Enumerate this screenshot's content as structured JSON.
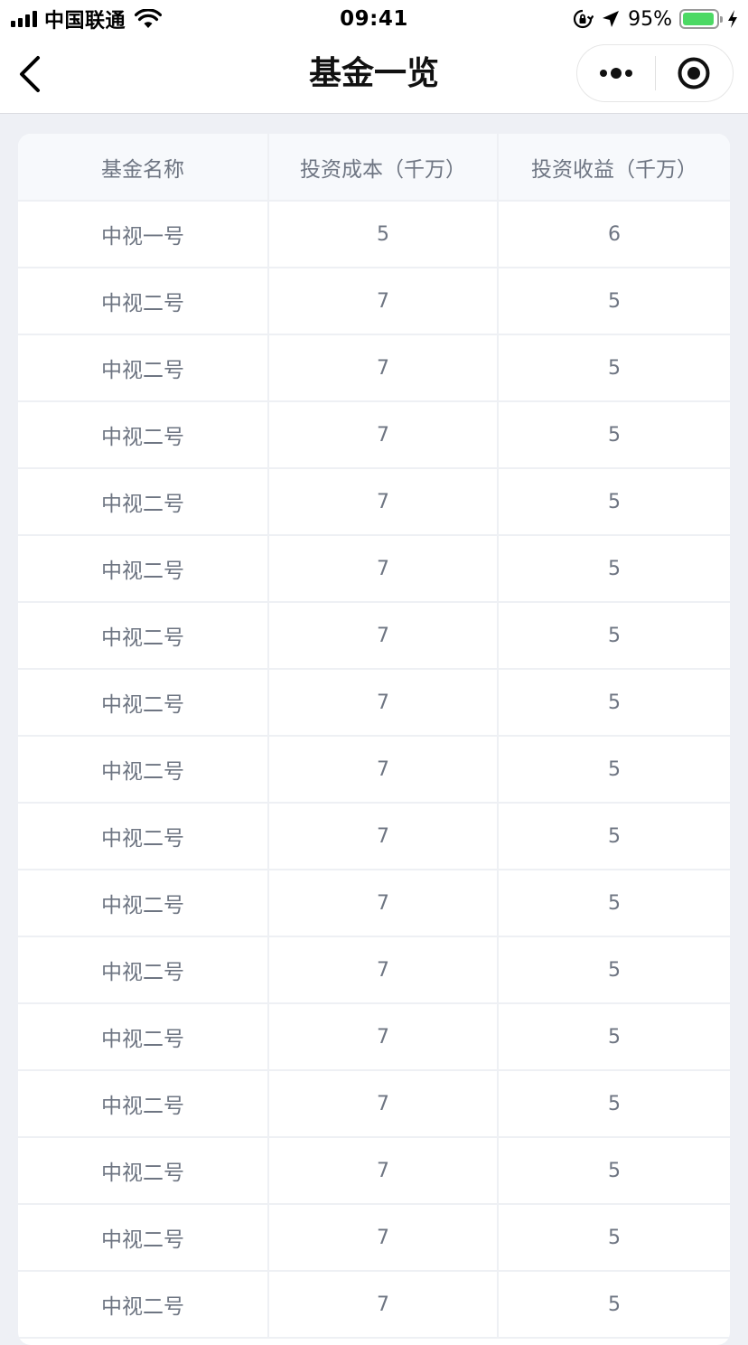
{
  "status_bar": {
    "carrier": "中国联通",
    "time": "09:41",
    "battery_percent": "95%",
    "battery_level": 0.95,
    "battery_color": "#4cd964"
  },
  "nav": {
    "title": "基金一览",
    "back_icon": "chevron-left-icon",
    "more_icon": "more-dots-icon",
    "close_icon": "target-circle-icon"
  },
  "table": {
    "headers": [
      "基金名称",
      "投资成本（千万）",
      "投资收益（千万）"
    ],
    "rows": [
      [
        "中视一号",
        "5",
        "6"
      ],
      [
        "中视二号",
        "7",
        "5"
      ],
      [
        "中视二号",
        "7",
        "5"
      ],
      [
        "中视二号",
        "7",
        "5"
      ],
      [
        "中视二号",
        "7",
        "5"
      ],
      [
        "中视二号",
        "7",
        "5"
      ],
      [
        "中视二号",
        "7",
        "5"
      ],
      [
        "中视二号",
        "7",
        "5"
      ],
      [
        "中视二号",
        "7",
        "5"
      ],
      [
        "中视二号",
        "7",
        "5"
      ],
      [
        "中视二号",
        "7",
        "5"
      ],
      [
        "中视二号",
        "7",
        "5"
      ],
      [
        "中视二号",
        "7",
        "5"
      ],
      [
        "中视二号",
        "7",
        "5"
      ],
      [
        "中视二号",
        "7",
        "5"
      ],
      [
        "中视二号",
        "7",
        "5"
      ],
      [
        "中视二号",
        "7",
        "5"
      ]
    ]
  }
}
